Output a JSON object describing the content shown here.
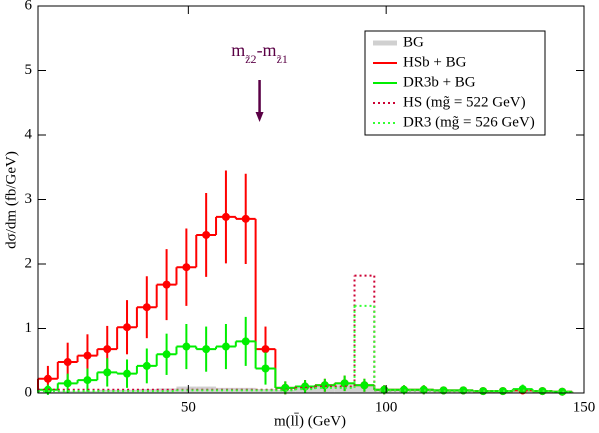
{
  "chart_data": {
    "type": "histogram",
    "xlabel": "m(ll̄) (GeV)",
    "ylabel": "dσ/dm (fb/GeV)",
    "bins": [
      12,
      17,
      22,
      27,
      32,
      37,
      42,
      47,
      52,
      57,
      62,
      67,
      72,
      77,
      82,
      87,
      92,
      97,
      102,
      107,
      112,
      117,
      122,
      127,
      132,
      137,
      142,
      147
    ],
    "xlim": [
      12,
      150
    ],
    "xticks": [
      50,
      100,
      150
    ],
    "ylim": [
      0,
      6
    ],
    "yticks": [
      0,
      1,
      2,
      3,
      4,
      5,
      6
    ],
    "annotation": {
      "x": 68,
      "parts": [
        {
          "text": "m"
        },
        {
          "text": "z̃2",
          "sub": true
        },
        {
          "text": "-m"
        },
        {
          "text": "z̃1",
          "sub": true
        }
      ],
      "color": "#5a0045"
    },
    "series": [
      {
        "name": "BG",
        "color": "#d0d0d0",
        "style": "fill",
        "values": [
          0.02,
          0.03,
          0.03,
          0.05,
          0.05,
          0.06,
          0.07,
          0.1,
          0.1,
          0.08,
          0.08,
          0.06,
          0.05,
          0.08,
          0.1,
          0.12,
          0.1,
          0.04,
          0.04,
          0.04,
          0.03,
          0.03,
          0.03,
          0.03,
          0.05,
          0.03,
          0.02
        ]
      },
      {
        "name": "HSb + BG",
        "color": "#ff0000",
        "style": "solid",
        "values": [
          0.22,
          0.48,
          0.58,
          0.68,
          1.02,
          1.33,
          1.68,
          1.95,
          2.45,
          2.73,
          2.7,
          0.68,
          0.08,
          0.1,
          0.12,
          0.15,
          0.12,
          0.05,
          0.05,
          0.05,
          0.04,
          0.04,
          0.03,
          0.03,
          0.04,
          0.03,
          0.02
        ],
        "errors": [
          0.2,
          0.3,
          0.33,
          0.36,
          0.42,
          0.48,
          0.55,
          0.6,
          0.65,
          0.72,
          0.7,
          0.35,
          0.1,
          0.1,
          0.1,
          0.12,
          0.1,
          0.07,
          0.07,
          0.07,
          0.06,
          0.06,
          0.05,
          0.05,
          0.06,
          0.05,
          0.04
        ]
      },
      {
        "name": "DR3b + BG",
        "color": "#00ee00",
        "style": "solid",
        "values": [
          0.05,
          0.15,
          0.2,
          0.32,
          0.3,
          0.42,
          0.6,
          0.72,
          0.68,
          0.72,
          0.8,
          0.38,
          0.08,
          0.1,
          0.12,
          0.15,
          0.12,
          0.05,
          0.05,
          0.05,
          0.04,
          0.04,
          0.03,
          0.03,
          0.06,
          0.03,
          0.02
        ],
        "errors": [
          0.08,
          0.15,
          0.18,
          0.22,
          0.22,
          0.27,
          0.32,
          0.35,
          0.35,
          0.35,
          0.38,
          0.25,
          0.1,
          0.1,
          0.1,
          0.12,
          0.1,
          0.07,
          0.07,
          0.07,
          0.06,
          0.06,
          0.05,
          0.05,
          0.07,
          0.05,
          0.04
        ]
      },
      {
        "name": "HS (mg̃ = 522 GeV)",
        "color": "#cc0033",
        "style": "dotted",
        "values": [
          0.05,
          0.05,
          0.05,
          0.05,
          0.05,
          0.05,
          0.05,
          0.05,
          0.05,
          0.05,
          0.05,
          0.05,
          0.05,
          0.08,
          0.1,
          0.1,
          1.82,
          0.04,
          0.04,
          0.04,
          0.03,
          0.03,
          0.03,
          0.03,
          0.04,
          0.03,
          0.02
        ]
      },
      {
        "name": "DR3 (mg̃ = 526 GeV)",
        "color": "#33ff33",
        "style": "dotted",
        "values": [
          0.03,
          0.03,
          0.03,
          0.03,
          0.03,
          0.03,
          0.03,
          0.04,
          0.04,
          0.04,
          0.04,
          0.04,
          0.04,
          0.06,
          0.08,
          0.08,
          1.35,
          0.04,
          0.04,
          0.04,
          0.03,
          0.03,
          0.03,
          0.03,
          0.04,
          0.03,
          0.02
        ]
      }
    ]
  }
}
